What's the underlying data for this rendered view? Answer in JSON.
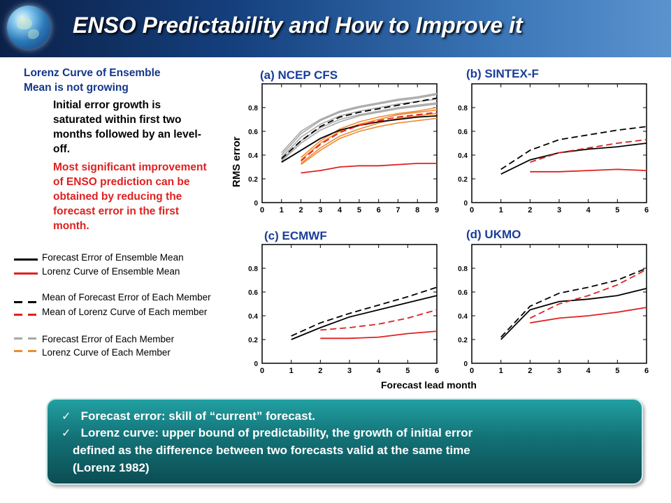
{
  "title": "ENSO Predictability and How to Improve it",
  "left_text": {
    "heading_line1": "Lorenz Curve of Ensemble",
    "heading_line2": "Mean is not growing",
    "para1": "Initial error growth is saturated within first two months followed by an level-off.",
    "para2": "Most significant improvement of ENSO prediction can be obtained by reducing the forecast error in the first month."
  },
  "legend": [
    {
      "label": "Forecast Error of Ensemble Mean",
      "color": "#000000",
      "style": "solid"
    },
    {
      "label": "Lorenz Curve of Ensemble Mean",
      "color": "#e02020",
      "style": "solid"
    },
    {
      "label": "Mean of Forecast Error of  Each Member",
      "color": "#000000",
      "style": "dashed"
    },
    {
      "label": "Mean of Lorenz Curve of Each member",
      "color": "#e02020",
      "style": "dashed"
    },
    {
      "label": "Forecast Error of Each Member",
      "color": "#a8a8a8",
      "style": "dashed"
    },
    {
      "label": "Lorenz Curve of Each Member",
      "color": "#f08a30",
      "style": "dashed"
    }
  ],
  "ylabel": "RMS error",
  "xlabel": "Forecast lead month",
  "colors": {
    "black": "#000000",
    "red": "#e02020",
    "gray": "#a8a8a8",
    "orange": "#f08a30",
    "panel_title": "#1a3d99"
  },
  "chart_data": [
    {
      "type": "line",
      "title": "(a) NCEP CFS",
      "xlim": [
        0,
        9
      ],
      "ylim": [
        0,
        1.0
      ],
      "xticks": [
        "0",
        "1",
        "2",
        "3",
        "4",
        "5",
        "6",
        "7",
        "8",
        "9"
      ],
      "yticks": [
        "0",
        "0.2",
        "0.4",
        "0.6",
        "0.8"
      ],
      "series": [
        {
          "name": "Forecast Error of Ensemble Mean",
          "style": "solid",
          "color": "#000000",
          "x": [
            1,
            2,
            3,
            4,
            5,
            6,
            7,
            8,
            9
          ],
          "y": [
            0.34,
            0.44,
            0.54,
            0.61,
            0.65,
            0.68,
            0.7,
            0.72,
            0.73
          ]
        },
        {
          "name": "Lorenz Curve of Ensemble Mean",
          "style": "solid",
          "color": "#e02020",
          "x": [
            2,
            3,
            4,
            5,
            6,
            7,
            8,
            9
          ],
          "y": [
            0.25,
            0.27,
            0.3,
            0.31,
            0.31,
            0.32,
            0.33,
            0.33
          ]
        },
        {
          "name": "Mean of Forecast Error of  Each Member",
          "style": "dashed",
          "color": "#000000",
          "x": [
            1,
            2,
            3,
            4,
            5,
            6,
            7,
            8,
            9
          ],
          "y": [
            0.37,
            0.52,
            0.64,
            0.72,
            0.76,
            0.79,
            0.82,
            0.85,
            0.88
          ]
        },
        {
          "name": "Mean of Lorenz Curve of Each member",
          "style": "dashed",
          "color": "#e02020",
          "x": [
            2,
            3,
            4,
            5,
            6,
            7,
            8,
            9
          ],
          "y": [
            0.35,
            0.49,
            0.59,
            0.65,
            0.69,
            0.72,
            0.74,
            0.76
          ]
        },
        {
          "name": "Forecast Error of Each Member",
          "style": "solid",
          "color": "#a8a8a8",
          "x": [
            1,
            2,
            3,
            4,
            5,
            6,
            7,
            8,
            9
          ],
          "y": [
            0.4,
            0.58,
            0.69,
            0.76,
            0.8,
            0.83,
            0.86,
            0.88,
            0.91
          ]
        },
        {
          "name": "Forecast Error of Each Member",
          "style": "solid",
          "color": "#a8a8a8",
          "x": [
            1,
            2,
            3,
            4,
            5,
            6,
            7,
            8,
            9
          ],
          "y": [
            0.38,
            0.55,
            0.66,
            0.73,
            0.77,
            0.8,
            0.83,
            0.85,
            0.87
          ]
        },
        {
          "name": "Forecast Error of Each Member",
          "style": "solid",
          "color": "#a8a8a8",
          "x": [
            1,
            2,
            3,
            4,
            5,
            6,
            7,
            8,
            9
          ],
          "y": [
            0.36,
            0.52,
            0.63,
            0.7,
            0.74,
            0.77,
            0.8,
            0.82,
            0.84
          ]
        },
        {
          "name": "Forecast Error of Each Member",
          "style": "solid",
          "color": "#a8a8a8",
          "x": [
            1,
            2,
            3,
            4,
            5,
            6,
            7,
            8,
            9
          ],
          "y": [
            0.42,
            0.6,
            0.7,
            0.77,
            0.81,
            0.84,
            0.87,
            0.89,
            0.92
          ]
        },
        {
          "name": "Forecast Error of Each Member",
          "style": "solid",
          "color": "#a8a8a8",
          "x": [
            1,
            2,
            3,
            4,
            5,
            6,
            7,
            8,
            9
          ],
          "y": [
            0.35,
            0.5,
            0.61,
            0.68,
            0.73,
            0.76,
            0.79,
            0.81,
            0.83
          ]
        },
        {
          "name": "Lorenz Curve of Each Member",
          "style": "solid",
          "color": "#f08a30",
          "x": [
            2,
            3,
            4,
            5,
            6,
            7,
            8,
            9
          ],
          "y": [
            0.33,
            0.46,
            0.56,
            0.62,
            0.67,
            0.71,
            0.73,
            0.75
          ]
        },
        {
          "name": "Lorenz Curve of Each Member",
          "style": "solid",
          "color": "#f08a30",
          "x": [
            2,
            3,
            4,
            5,
            6,
            7,
            8,
            9
          ],
          "y": [
            0.36,
            0.5,
            0.6,
            0.66,
            0.7,
            0.74,
            0.76,
            0.78
          ]
        },
        {
          "name": "Lorenz Curve of Each Member",
          "style": "solid",
          "color": "#f08a30",
          "x": [
            2,
            3,
            4,
            5,
            6,
            7,
            8,
            9
          ],
          "y": [
            0.32,
            0.44,
            0.54,
            0.6,
            0.64,
            0.67,
            0.69,
            0.71
          ]
        },
        {
          "name": "Lorenz Curve of Each Member",
          "style": "solid",
          "color": "#f08a30",
          "x": [
            2,
            3,
            4,
            5,
            6,
            7,
            8,
            9
          ],
          "y": [
            0.38,
            0.52,
            0.62,
            0.68,
            0.72,
            0.75,
            0.77,
            0.8
          ]
        }
      ]
    },
    {
      "type": "line",
      "title": "(b) SINTEX-F",
      "xlim": [
        0,
        6
      ],
      "ylim": [
        0,
        1.0
      ],
      "xticks": [
        "0",
        "1",
        "2",
        "3",
        "4",
        "5",
        "6"
      ],
      "yticks": [
        "0",
        "0.2",
        "0.4",
        "0.6",
        "0.8"
      ],
      "series": [
        {
          "name": "Forecast Error of Ensemble Mean",
          "style": "solid",
          "color": "#000000",
          "x": [
            1,
            2,
            3,
            4,
            5,
            6
          ],
          "y": [
            0.24,
            0.36,
            0.42,
            0.45,
            0.47,
            0.5
          ]
        },
        {
          "name": "Lorenz Curve of Ensemble Mean",
          "style": "solid",
          "color": "#e02020",
          "x": [
            2,
            3,
            4,
            5,
            6
          ],
          "y": [
            0.26,
            0.26,
            0.27,
            0.28,
            0.27
          ]
        },
        {
          "name": "Mean of Forecast Error of  Each Member",
          "style": "dashed",
          "color": "#000000",
          "x": [
            1,
            2,
            3,
            4,
            5,
            6
          ],
          "y": [
            0.28,
            0.44,
            0.53,
            0.57,
            0.61,
            0.64
          ]
        },
        {
          "name": "Mean of Lorenz Curve of Each member",
          "style": "dashed",
          "color": "#e02020",
          "x": [
            2,
            3,
            4,
            5,
            6
          ],
          "y": [
            0.34,
            0.42,
            0.46,
            0.5,
            0.53
          ]
        }
      ]
    },
    {
      "type": "line",
      "title": "(c) ECMWF",
      "xlim": [
        0,
        6
      ],
      "ylim": [
        0,
        1.0
      ],
      "xticks": [
        "0",
        "1",
        "2",
        "3",
        "4",
        "5",
        "6"
      ],
      "yticks": [
        "0",
        "0.2",
        "0.4",
        "0.6",
        "0.8"
      ],
      "series": [
        {
          "name": "Forecast Error of Ensemble Mean",
          "style": "solid",
          "color": "#000000",
          "x": [
            1,
            2,
            3,
            4,
            5,
            6
          ],
          "y": [
            0.2,
            0.3,
            0.39,
            0.45,
            0.51,
            0.57
          ]
        },
        {
          "name": "Lorenz Curve of Ensemble Mean",
          "style": "solid",
          "color": "#e02020",
          "x": [
            2,
            3,
            4,
            5,
            6
          ],
          "y": [
            0.21,
            0.21,
            0.22,
            0.25,
            0.27
          ]
        },
        {
          "name": "Mean of Forecast Error of  Each Member",
          "style": "dashed",
          "color": "#000000",
          "x": [
            1,
            2,
            3,
            4,
            5,
            6
          ],
          "y": [
            0.23,
            0.34,
            0.42,
            0.49,
            0.56,
            0.64
          ]
        },
        {
          "name": "Mean of Lorenz Curve of Each member",
          "style": "dashed",
          "color": "#e02020",
          "x": [
            2,
            3,
            4,
            5,
            6
          ],
          "y": [
            0.28,
            0.3,
            0.33,
            0.38,
            0.45
          ]
        }
      ]
    },
    {
      "type": "line",
      "title": "(d) UKMO",
      "xlim": [
        0,
        6
      ],
      "ylim": [
        0,
        1.0
      ],
      "xticks": [
        "0",
        "1",
        "2",
        "3",
        "4",
        "5",
        "6"
      ],
      "yticks": [
        "0",
        "0.2",
        "0.4",
        "0.6",
        "0.8"
      ],
      "series": [
        {
          "name": "Forecast Error of Ensemble Mean",
          "style": "solid",
          "color": "#000000",
          "x": [
            1,
            2,
            3,
            4,
            5,
            6
          ],
          "y": [
            0.2,
            0.45,
            0.52,
            0.54,
            0.57,
            0.63
          ]
        },
        {
          "name": "Lorenz Curve of Ensemble Mean",
          "style": "solid",
          "color": "#e02020",
          "x": [
            2,
            3,
            4,
            5,
            6
          ],
          "y": [
            0.34,
            0.38,
            0.4,
            0.43,
            0.47
          ]
        },
        {
          "name": "Mean of Forecast Error of  Each Member",
          "style": "dashed",
          "color": "#000000",
          "x": [
            1,
            2,
            3,
            4,
            5,
            6
          ],
          "y": [
            0.22,
            0.48,
            0.59,
            0.64,
            0.7,
            0.8
          ]
        },
        {
          "name": "Mean of Lorenz Curve of Each member",
          "style": "dashed",
          "color": "#e02020",
          "x": [
            2,
            3,
            4,
            5,
            6
          ],
          "y": [
            0.38,
            0.5,
            0.57,
            0.66,
            0.79
          ]
        }
      ]
    }
  ],
  "bottom_box": {
    "bullet1": "Forecast error: skill of “current” forecast.",
    "bullet2_line1": "Lorenz curve: upper bound of predictability, the growth of initial error",
    "bullet2_line2": "defined as the difference between two forecasts valid at the same time",
    "bullet2_line3": "(Lorenz 1982)",
    "check": "✓"
  }
}
